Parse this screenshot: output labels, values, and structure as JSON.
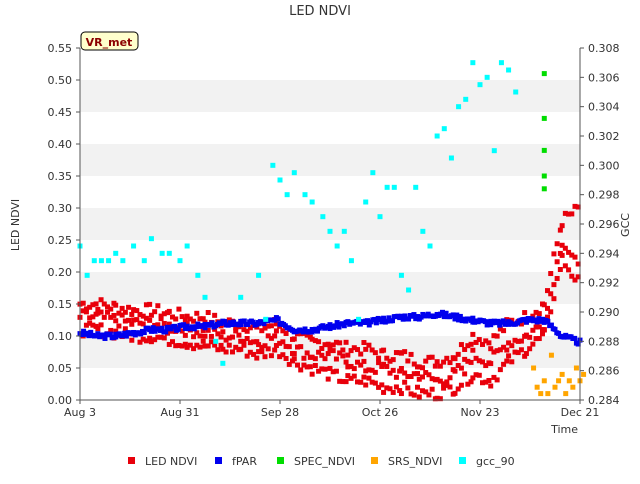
{
  "chart_data": {
    "type": "scatter",
    "title": "LED NDVI",
    "site_label": "VR_met",
    "xlabel": "Time",
    "ylabel_left": "LED NDVI",
    "ylabel_right": "GCC",
    "x_range": [
      "2023-08-03",
      "2023-12-21"
    ],
    "x_tick_labels": [
      "Aug 3",
      "Aug 31",
      "Sep 28",
      "Oct 26",
      "Nov 23",
      "Dec 21"
    ],
    "ylim_left": [
      0.0,
      0.55
    ],
    "y_ticks_left": [
      "0.00",
      "0.05",
      "0.10",
      "0.15",
      "0.20",
      "0.25",
      "0.30",
      "0.35",
      "0.40",
      "0.45",
      "0.50",
      "0.55"
    ],
    "ylim_right": [
      0.284,
      0.308
    ],
    "y_ticks_right": [
      "0.284",
      "0.286",
      "0.288",
      "0.290",
      "0.292",
      "0.294",
      "0.296",
      "0.298",
      "0.300",
      "0.302",
      "0.304",
      "0.306",
      "0.308"
    ],
    "grid": "alternating horizontal bands",
    "legend_position": "bottom",
    "colors": {
      "LED NDVI": "#e8000b",
      "fPAR": "#0000ee",
      "SPEC_NDVI": "#00dd00",
      "SRS_NDVI": "#ffa500",
      "gcc_90": "#00ffff"
    },
    "series": [
      {
        "name": "LED NDVI",
        "axis": "left",
        "description_points_estimated": true,
        "bands": [
          {
            "x": [
              0,
              5,
              10,
              15,
              20,
              25,
              30,
              35,
              40,
              45,
              50,
              55,
              60,
              65,
              70,
              75,
              80,
              85,
              90,
              95,
              100,
              105,
              110,
              115,
              120,
              125,
              130,
              135,
              140
            ],
            "y": [
              0.15,
              0.15,
              0.145,
              0.14,
              0.14,
              0.135,
              0.13,
              0.13,
              0.12,
              0.12,
              0.11,
              0.12,
              0.1,
              0.09,
              0.09,
              0.08,
              0.08,
              0.07,
              0.07,
              0.06,
              0.06,
              0.07,
              0.1,
              0.09,
              0.12,
              0.13,
              0.15,
              0.28,
              0.3
            ]
          },
          {
            "x": [
              0,
              5,
              10,
              15,
              20,
              25,
              30,
              35,
              40,
              45,
              50,
              55,
              60,
              65,
              70,
              75,
              80,
              85,
              90,
              95,
              100,
              105,
              110,
              115,
              120,
              125,
              130,
              135,
              140
            ],
            "y": [
              0.13,
              0.13,
              0.125,
              0.12,
              0.12,
              0.115,
              0.11,
              0.105,
              0.1,
              0.1,
              0.09,
              0.1,
              0.08,
              0.07,
              0.07,
              0.06,
              0.05,
              0.05,
              0.04,
              0.04,
              0.03,
              0.04,
              0.07,
              0.06,
              0.09,
              0.1,
              0.12,
              0.25,
              0.2
            ]
          },
          {
            "x": [
              0,
              5,
              10,
              15,
              20,
              25,
              30,
              35,
              40,
              45,
              50,
              55,
              60,
              65,
              70,
              75,
              80,
              85,
              90,
              95,
              100,
              105,
              110,
              115,
              120,
              125,
              130,
              135,
              140
            ],
            "y": [
              0.11,
              0.11,
              0.105,
              0.1,
              0.1,
              0.095,
              0.09,
              0.085,
              0.08,
              0.08,
              0.07,
              0.08,
              0.06,
              0.05,
              0.04,
              0.03,
              0.03,
              0.02,
              0.02,
              0.01,
              0.01,
              0.02,
              0.04,
              0.03,
              0.06,
              0.08,
              0.1,
              0.22,
              0.18
            ]
          }
        ]
      },
      {
        "name": "fPAR",
        "axis": "left",
        "x": [
          0,
          5,
          10,
          15,
          20,
          25,
          30,
          35,
          40,
          45,
          50,
          55,
          60,
          65,
          70,
          75,
          80,
          85,
          90,
          95,
          100,
          105,
          110,
          115,
          120,
          125,
          130,
          135,
          140
        ],
        "y": [
          0.105,
          0.1,
          0.1,
          0.105,
          0.11,
          0.11,
          0.115,
          0.115,
          0.12,
          0.12,
          0.12,
          0.125,
          0.11,
          0.11,
          0.115,
          0.12,
          0.12,
          0.125,
          0.13,
          0.13,
          0.135,
          0.13,
          0.125,
          0.12,
          0.12,
          0.125,
          0.125,
          0.1,
          0.09
        ]
      },
      {
        "name": "SPEC_NDVI",
        "axis": "left",
        "x": [
          130,
          130,
          130,
          130,
          130
        ],
        "y": [
          0.51,
          0.44,
          0.39,
          0.35,
          0.33
        ]
      },
      {
        "name": "SRS_NDVI",
        "axis": "left",
        "x": [
          127,
          128,
          129,
          130,
          131,
          132,
          133,
          134,
          135,
          136,
          137,
          138,
          139,
          140,
          141
        ],
        "y": [
          0.05,
          0.02,
          0.01,
          0.03,
          0.01,
          0.07,
          0.02,
          0.03,
          0.04,
          0.01,
          0.03,
          0.02,
          0.05,
          0.03,
          0.04
        ]
      },
      {
        "name": "gcc_90",
        "axis": "right",
        "x": [
          0,
          2,
          4,
          6,
          8,
          10,
          12,
          15,
          18,
          20,
          23,
          25,
          28,
          30,
          33,
          35,
          38,
          40,
          45,
          50,
          52,
          54,
          56,
          58,
          60,
          63,
          65,
          68,
          70,
          72,
          74,
          76,
          78,
          80,
          82,
          84,
          86,
          88,
          90,
          92,
          94,
          96,
          98,
          100,
          102,
          104,
          106,
          108,
          110,
          112,
          114,
          116,
          118,
          120,
          122
        ],
        "y": [
          0.2945,
          0.2925,
          0.2935,
          0.2935,
          0.2935,
          0.294,
          0.2935,
          0.2945,
          0.2935,
          0.295,
          0.294,
          0.294,
          0.2935,
          0.2945,
          0.2925,
          0.291,
          0.288,
          0.2865,
          0.291,
          0.2925,
          0.2895,
          0.3,
          0.299,
          0.298,
          0.2995,
          0.298,
          0.2975,
          0.2965,
          0.2955,
          0.2945,
          0.2955,
          0.2935,
          0.2895,
          0.2975,
          0.2995,
          0.2965,
          0.2985,
          0.2985,
          0.2925,
          0.2915,
          0.2985,
          0.2955,
          0.2945,
          0.302,
          0.3025,
          0.3005,
          0.304,
          0.3045,
          0.307,
          0.3055,
          0.306,
          0.301,
          0.307,
          0.3065,
          0.305
        ]
      }
    ]
  }
}
